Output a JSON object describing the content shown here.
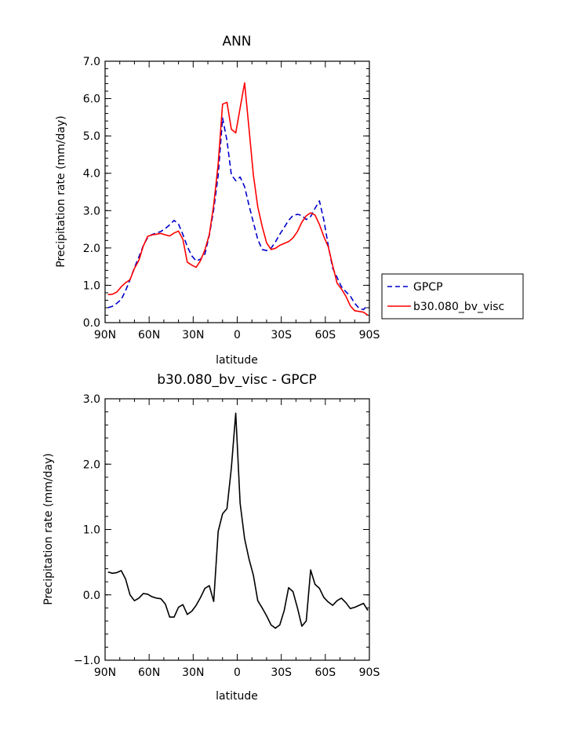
{
  "chart_data": [
    {
      "type": "line",
      "title": "ANN",
      "xlabel": "latitude",
      "ylabel": "Precipitation rate (mm/day)",
      "xlim": [
        -90,
        90
      ],
      "ylim": [
        0,
        7
      ],
      "xticks": [
        -90,
        -60,
        -30,
        0,
        30,
        60,
        90
      ],
      "xtick_labels": [
        "90N",
        "60N",
        "30N",
        "0",
        "30S",
        "60S",
        "90S"
      ],
      "yticks": [
        0,
        1,
        2,
        3,
        4,
        5,
        6,
        7
      ],
      "ytick_labels": [
        "0.0",
        "1.0",
        "2.0",
        "3.0",
        "4.0",
        "5.0",
        "6.0",
        "7.0"
      ],
      "legend": {
        "position": "right",
        "entries": [
          "GPCP",
          "b30.080_bv_visc"
        ]
      },
      "series": [
        {
          "name": "GPCP",
          "color": "#0000cc",
          "dash": "dashed",
          "x": [
            -88,
            -85,
            -82,
            -79,
            -76,
            -73,
            -70,
            -67,
            -64,
            -61,
            -58,
            -55,
            -52,
            -49,
            -46,
            -43,
            -40,
            -37,
            -34,
            -31,
            -28,
            -25,
            -22,
            -19,
            -16,
            -13,
            -10,
            -7,
            -4,
            -1,
            2,
            5,
            8,
            11,
            14,
            17,
            20,
            23,
            26,
            29,
            32,
            35,
            38,
            41,
            44,
            47,
            50,
            53,
            56,
            59,
            62,
            65,
            68,
            71,
            74,
            77,
            80,
            83,
            86,
            89
          ],
          "values": [
            0.4,
            0.44,
            0.52,
            0.62,
            0.86,
            1.15,
            1.47,
            1.76,
            2.06,
            2.28,
            2.36,
            2.4,
            2.44,
            2.52,
            2.62,
            2.74,
            2.64,
            2.36,
            2.04,
            1.79,
            1.65,
            1.7,
            1.84,
            2.34,
            3.03,
            3.94,
            5.48,
            4.88,
            3.96,
            3.8,
            3.9,
            3.64,
            3.14,
            2.68,
            2.23,
            1.96,
            1.93,
            1.99,
            2.16,
            2.37,
            2.55,
            2.74,
            2.87,
            2.9,
            2.87,
            2.76,
            2.84,
            3.06,
            3.26,
            2.74,
            2.06,
            1.46,
            1.21,
            0.96,
            0.83,
            0.71,
            0.52,
            0.38,
            0.35,
            0.47
          ]
        },
        {
          "name": "b30.080_bv_visc",
          "color": "#ff0000",
          "dash": "solid",
          "x": [
            -88,
            -85,
            -82,
            -79,
            -76,
            -73,
            -70,
            -67,
            -64,
            -61,
            -58,
            -55,
            -52,
            -49,
            -46,
            -43,
            -40,
            -37,
            -34,
            -31,
            -28,
            -25,
            -22,
            -19,
            -16,
            -13,
            -10,
            -7,
            -4,
            -1,
            2,
            5,
            8,
            11,
            14,
            17,
            20,
            23,
            26,
            29,
            32,
            35,
            38,
            41,
            44,
            47,
            50,
            53,
            56,
            59,
            62,
            65,
            68,
            71,
            74,
            77,
            80,
            83,
            86,
            89
          ],
          "values": [
            0.75,
            0.76,
            0.82,
            0.96,
            1.07,
            1.15,
            1.45,
            1.67,
            2.05,
            2.31,
            2.35,
            2.37,
            2.39,
            2.35,
            2.32,
            2.4,
            2.45,
            2.23,
            1.62,
            1.54,
            1.48,
            1.66,
            1.95,
            2.36,
            3.15,
            4.25,
            5.85,
            5.9,
            5.18,
            5.08,
            5.75,
            6.42,
            5.2,
            3.95,
            3.1,
            2.58,
            2.14,
            1.96,
            1.99,
            2.07,
            2.12,
            2.17,
            2.27,
            2.44,
            2.69,
            2.86,
            2.94,
            2.88,
            2.63,
            2.3,
            2.03,
            1.53,
            1.06,
            0.9,
            0.71,
            0.45,
            0.32,
            0.3,
            0.28,
            0.2
          ]
        }
      ]
    },
    {
      "type": "line",
      "title": "b30.080_bv_visc - GPCP",
      "xlabel": "latitude",
      "ylabel": "Precipitation rate (mm/day)",
      "xlim": [
        -90,
        90
      ],
      "ylim": [
        -1,
        3
      ],
      "xticks": [
        -90,
        -60,
        -30,
        0,
        30,
        60,
        90
      ],
      "xtick_labels": [
        "90N",
        "60N",
        "30N",
        "0",
        "30S",
        "60S",
        "90S"
      ],
      "yticks": [
        -1,
        0,
        1,
        2,
        3
      ],
      "ytick_labels": [
        "−1.0",
        "0.0",
        "1.0",
        "2.0",
        "3.0"
      ],
      "series": [
        {
          "name": "b30.080_bv_visc - GPCP",
          "color": "#000000",
          "dash": "solid",
          "x": [
            -88,
            -85,
            -82,
            -79,
            -76,
            -73,
            -70,
            -67,
            -64,
            -61,
            -58,
            -55,
            -52,
            -49,
            -46,
            -43,
            -40,
            -37,
            -34,
            -31,
            -28,
            -25,
            -22,
            -19,
            -16,
            -13,
            -10,
            -7,
            -4,
            -1,
            2,
            5,
            8,
            11,
            14,
            17,
            20,
            23,
            26,
            29,
            32,
            35,
            38,
            41,
            44,
            47,
            50,
            53,
            56,
            59,
            62,
            65,
            68,
            71,
            74,
            77,
            80,
            83,
            86,
            89
          ],
          "values": [
            0.35,
            0.33,
            0.34,
            0.37,
            0.24,
            0.0,
            -0.09,
            -0.05,
            0.02,
            0.01,
            -0.03,
            -0.05,
            -0.06,
            -0.14,
            -0.34,
            -0.34,
            -0.19,
            -0.15,
            -0.3,
            -0.25,
            -0.16,
            -0.04,
            0.1,
            0.14,
            -0.1,
            0.97,
            1.24,
            1.32,
            1.94,
            2.78,
            1.4,
            0.86,
            0.55,
            0.3,
            -0.09,
            -0.2,
            -0.32,
            -0.46,
            -0.51,
            -0.46,
            -0.24,
            0.11,
            0.05,
            -0.2,
            -0.48,
            -0.4,
            0.38,
            0.16,
            0.1,
            -0.04,
            -0.11,
            -0.16,
            -0.09,
            -0.05,
            -0.12,
            -0.21,
            -0.19,
            -0.16,
            -0.13,
            -0.24
          ]
        }
      ]
    }
  ]
}
